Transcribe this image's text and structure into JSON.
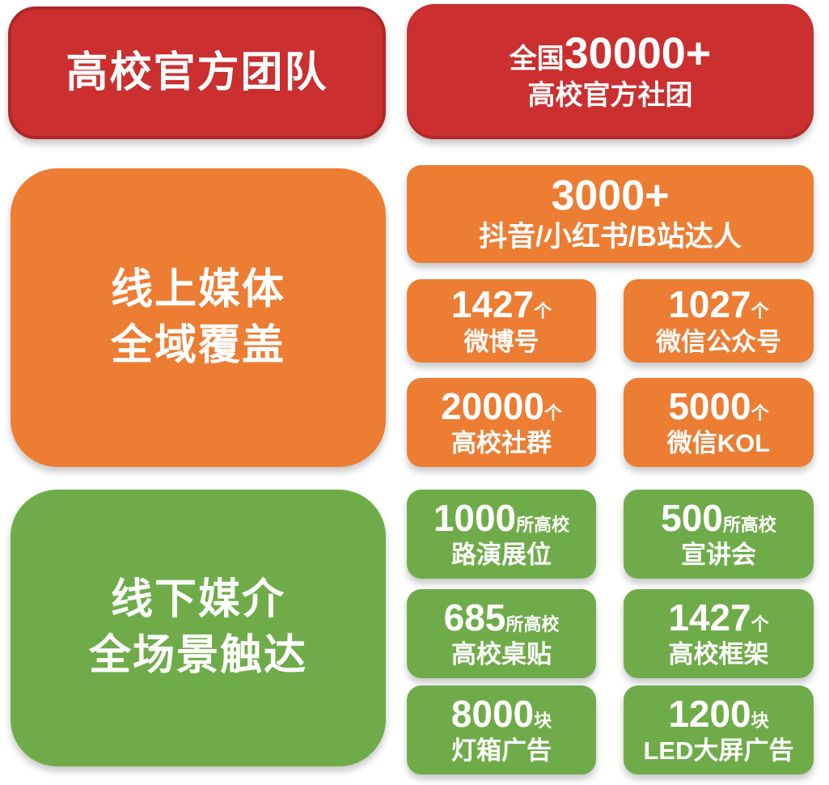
{
  "colors": {
    "red": "#CB2F2F",
    "red_border": "#AF2727",
    "orange": "#EC7D33",
    "green": "#6FAC49",
    "text": "#FFFFFF",
    "background": "#FFFFFF"
  },
  "sections": {
    "official": {
      "title": "高校官方团队",
      "stat": {
        "prefix": "全国",
        "number": "30000+",
        "label": "高校官方社团"
      }
    },
    "online": {
      "title_line1": "线上媒体",
      "title_line2": "全域覆盖",
      "hero": {
        "number": "3000+",
        "label": "抖音/小红书/B站达人"
      },
      "stats": [
        {
          "number": "1427",
          "unit": "个",
          "label": "微博号"
        },
        {
          "number": "1027",
          "unit": "个",
          "label": "微信公众号"
        },
        {
          "number": "20000",
          "unit": "个",
          "label": "高校社群"
        },
        {
          "number": "5000",
          "unit": "个",
          "label": "微信KOL"
        }
      ]
    },
    "offline": {
      "title_line1": "线下媒介",
      "title_line2": "全场景触达",
      "stats": [
        {
          "number": "1000",
          "unit": "所高校",
          "label": "路演展位"
        },
        {
          "number": "500",
          "unit": "所高校",
          "label": "宣讲会"
        },
        {
          "number": "685",
          "unit": "所高校",
          "label": "高校桌贴"
        },
        {
          "number": "1427",
          "unit": "个",
          "label": "高校框架"
        },
        {
          "number": "8000",
          "unit": "块",
          "label": "灯箱广告"
        },
        {
          "number": "1200",
          "unit": "块",
          "label": "LED大屏广告"
        }
      ]
    }
  }
}
